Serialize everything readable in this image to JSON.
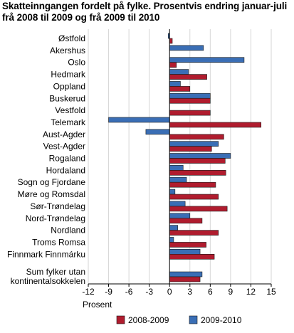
{
  "title_line1": "Skatteinngangen fordelt på fylke. Prosentvis endring januar-juli",
  "title_line2": "frå 2008 til 2009 og frå 2009 til 2010",
  "chart_data": {
    "type": "bar",
    "orientation": "horizontal",
    "categories": [
      "Østfold",
      "Akershus",
      "Oslo",
      "Hedmark",
      "Oppland",
      "Buskerud",
      "Vestfold",
      "Telemark",
      "Aust-Agder",
      "Vest-Agder",
      "Rogaland",
      "Hordaland",
      "Sogn og Fjordane",
      "Møre og Romsdal",
      "Sør-Trøndelag",
      "Nord-Trøndelag",
      "Nordland",
      "Troms Romsa",
      "Finnmark Finnmárku",
      "Sum fylker utan kontinentalsokkelen"
    ],
    "category_lines": [
      [
        "Østfold"
      ],
      [
        "Akershus"
      ],
      [
        "Oslo"
      ],
      [
        "Hedmark"
      ],
      [
        "Oppland"
      ],
      [
        "Buskerud"
      ],
      [
        "Vestfold"
      ],
      [
        "Telemark"
      ],
      [
        "Aust-Agder"
      ],
      [
        "Vest-Agder"
      ],
      [
        "Rogaland"
      ],
      [
        "Hordaland"
      ],
      [
        "Sogn og Fjordane"
      ],
      [
        "Møre og Romsdal"
      ],
      [
        "Sør-Trøndelag"
      ],
      [
        "Nord-Trøndelag"
      ],
      [
        "Nordland"
      ],
      [
        "Troms Romsa"
      ],
      [
        "Finnmark Finnmárku"
      ],
      [
        "Sum fylker utan",
        "kontinentalsokkelen"
      ]
    ],
    "series": [
      {
        "name": "2008-2009",
        "color": "#b01c2e",
        "values": [
          0.4,
          0.0,
          1.0,
          5.5,
          3.0,
          6.0,
          6.0,
          13.5,
          8.0,
          6.2,
          8.2,
          8.3,
          6.8,
          7.2,
          8.5,
          4.8,
          7.2,
          5.4,
          6.6,
          4.5
        ]
      },
      {
        "name": "2009-2010",
        "color": "#3a6eb5",
        "values": [
          -0.2,
          5.0,
          11.0,
          2.8,
          1.6,
          6.0,
          0.0,
          -9.0,
          -3.5,
          7.2,
          9.0,
          2.0,
          2.5,
          0.8,
          2.3,
          3.0,
          1.2,
          0.6,
          4.5,
          4.8
        ]
      }
    ],
    "xlabel": "Prosent",
    "xlim": [
      -12,
      15
    ],
    "xticks": [
      -12,
      -9,
      -6,
      -3,
      0,
      3,
      6,
      9,
      12,
      15
    ],
    "grid": true,
    "legend_position": "bottom"
  }
}
